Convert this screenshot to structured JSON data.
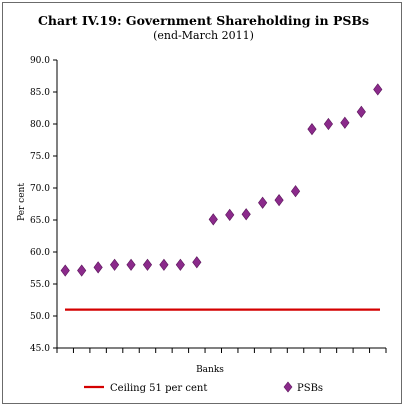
{
  "chart_data": {
    "type": "scatter",
    "title": "Chart IV.19: Government Shareholding in PSBs",
    "subtitle": "(end-March 2011)",
    "xlabel": "Banks",
    "ylabel": "Per cent",
    "ylim": [
      45.0,
      90.0
    ],
    "yticks": [
      "45.0",
      "50.0",
      "55.0",
      "60.0",
      "65.0",
      "70.0",
      "75.0",
      "80.0",
      "85.0",
      "90.0"
    ],
    "grid": false,
    "legend_position": "bottom",
    "series": [
      {
        "name": "PSBs",
        "marker": "diamond",
        "color": "#8B2A8B",
        "values": [
          57.1,
          57.1,
          57.6,
          58.0,
          58.0,
          58.0,
          58.0,
          58.0,
          58.4,
          65.1,
          65.8,
          65.9,
          67.7,
          68.1,
          69.5,
          79.2,
          80.0,
          80.2,
          81.9,
          85.4
        ]
      }
    ],
    "reference_lines": [
      {
        "name": "Ceiling 51 per cent",
        "value": 51.0,
        "color": "#d40000"
      }
    ]
  }
}
